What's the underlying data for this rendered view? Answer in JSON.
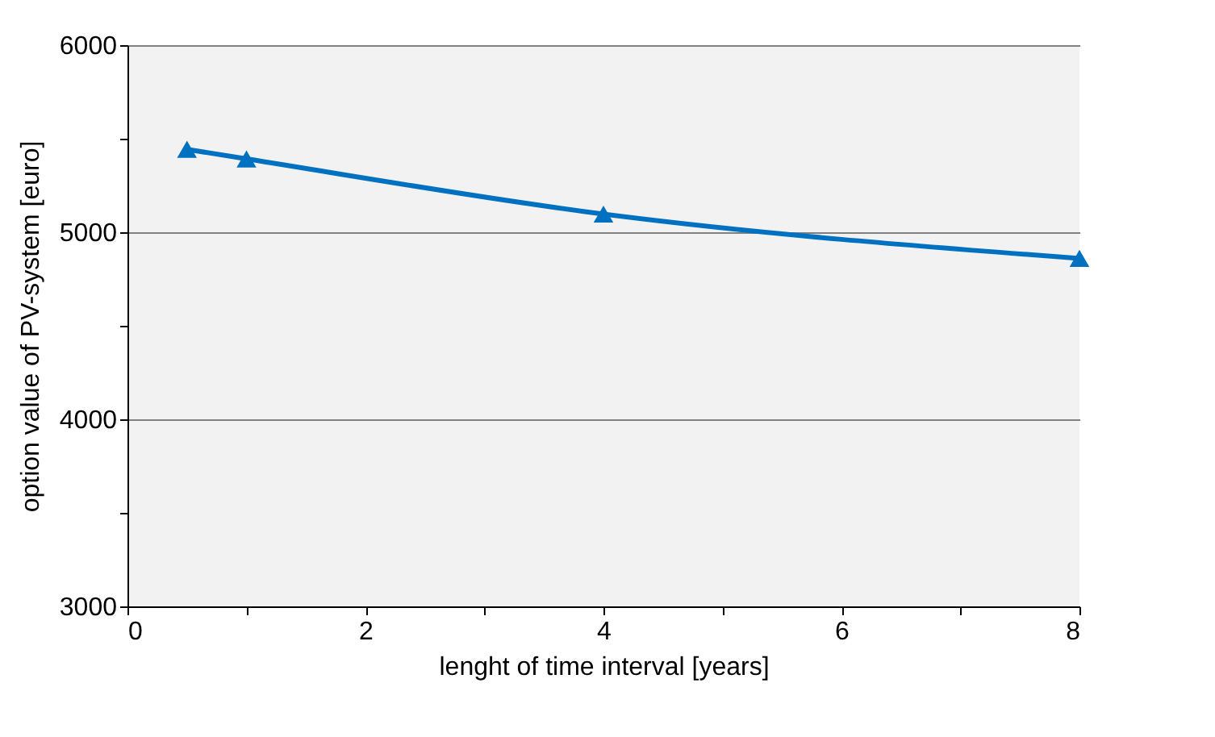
{
  "chart_data": {
    "type": "line",
    "xlabel": "lenght of time interval [years]",
    "ylabel": "option value of PV-system [euro]",
    "x": [
      0.5,
      1,
      4,
      8
    ],
    "series": [
      {
        "color": "#0070c0",
        "values": [
          5443,
          5392,
          5097,
          4860
        ]
      }
    ],
    "xlim": [
      0,
      8
    ],
    "xticks": [
      0,
      {
        "value": 1,
        "label": null
      },
      2,
      {
        "value": 3,
        "label": null
      },
      4,
      {
        "value": 5,
        "label": null
      },
      6,
      {
        "value": 7,
        "label": null
      },
      8
    ],
    "ylim": [
      3000,
      6000
    ],
    "yticks": [
      3000,
      {
        "value": 3500,
        "label": null
      },
      4000,
      {
        "value": 4500,
        "label": null
      },
      5000,
      {
        "value": 5500,
        "label": null
      },
      6000
    ],
    "grid": "y",
    "marker": "triangle",
    "line_style": "solid"
  }
}
